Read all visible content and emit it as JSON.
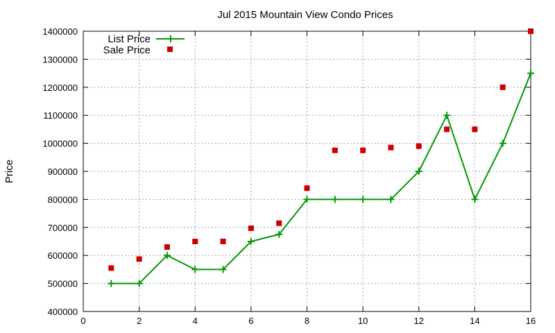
{
  "chart_data": {
    "type": "line",
    "title": "Jul 2015 Mountain View Condo Prices",
    "xlabel": "",
    "ylabel": "Price",
    "xlim": [
      0,
      16
    ],
    "ylim": [
      400000,
      1400000
    ],
    "x_ticks": [
      0,
      2,
      4,
      6,
      8,
      10,
      12,
      14,
      16
    ],
    "y_ticks": [
      400000,
      500000,
      600000,
      700000,
      800000,
      900000,
      1000000,
      1100000,
      1200000,
      1300000,
      1400000
    ],
    "x_tick_labels": [
      "0",
      "2",
      "4",
      "6",
      "8",
      "10",
      "12",
      "14",
      "16"
    ],
    "y_tick_labels": [
      "400000",
      "500000",
      "600000",
      "700000",
      "800000",
      "900000",
      "1000000",
      "1100000",
      "1200000",
      "1300000",
      "1400000"
    ],
    "grid": true,
    "legend_position": "top-left",
    "series": [
      {
        "name": "List Price",
        "style": "line+cross",
        "color": "#009900",
        "x": [
          1,
          2,
          3,
          4,
          5,
          6,
          7,
          8,
          9,
          10,
          11,
          12,
          13,
          14,
          15,
          16
        ],
        "y": [
          500000,
          500000,
          600000,
          550000,
          550000,
          650000,
          675000,
          800000,
          800000,
          800000,
          800000,
          900000,
          1100000,
          800000,
          1000000,
          1250000
        ]
      },
      {
        "name": "Sale Price",
        "style": "square",
        "color": "#cc0000",
        "x": [
          1,
          2,
          3,
          4,
          5,
          6,
          7,
          8,
          9,
          10,
          11,
          12,
          13,
          14,
          15,
          16
        ],
        "y": [
          555000,
          587000,
          630000,
          650000,
          650000,
          697000,
          715000,
          840000,
          975000,
          975000,
          985000,
          990000,
          1050000,
          1050000,
          1200000,
          1400000
        ]
      }
    ]
  }
}
